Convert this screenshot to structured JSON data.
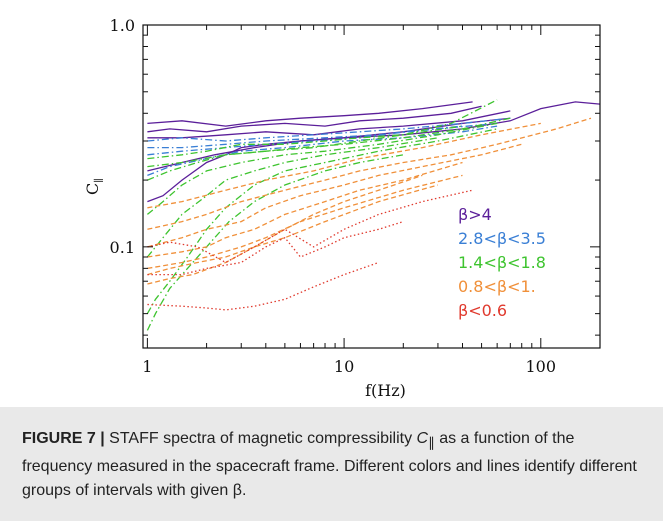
{
  "chart_data": {
    "type": "line",
    "title": "",
    "xlabel": "f(Hz)",
    "ylabel": "C",
    "ylabel_subscript": "∥",
    "xscale": "log",
    "yscale": "log",
    "xlim": [
      0.95,
      200
    ],
    "ylim": [
      0.035,
      1.0
    ],
    "xticks": [
      {
        "value": 1,
        "label": "1"
      },
      {
        "value": 10,
        "label": "10"
      },
      {
        "value": 100,
        "label": "100"
      }
    ],
    "yticks": [
      {
        "value": 0.1,
        "label": "0.1"
      },
      {
        "value": 1.0,
        "label": "1.0"
      }
    ],
    "grid": false,
    "legend_position": "right",
    "legend": [
      {
        "label": "β>4",
        "color": "#5b1f9a",
        "dash": "solid"
      },
      {
        "label": "2.8<β<3.5",
        "color": "#3a7fd5",
        "dash": "dashdot"
      },
      {
        "label": "1.4<β<1.8",
        "color": "#3ec42f",
        "dash": "dashdot"
      },
      {
        "label": "0.8<β<1.",
        "color": "#f0903a",
        "dash": "dashed"
      },
      {
        "label": "β<0.6",
        "color": "#e03a2e",
        "dash": "dotted"
      }
    ],
    "series": [
      {
        "group": 0,
        "x": [
          1,
          1.5,
          2.5,
          4,
          6,
          10,
          15,
          25,
          45
        ],
        "y": [
          0.36,
          0.37,
          0.35,
          0.37,
          0.38,
          0.39,
          0.4,
          0.42,
          0.45
        ]
      },
      {
        "group": 0,
        "x": [
          1,
          1.3,
          2,
          3,
          5,
          8,
          12,
          20,
          35,
          50
        ],
        "y": [
          0.33,
          0.34,
          0.33,
          0.35,
          0.36,
          0.35,
          0.37,
          0.38,
          0.4,
          0.43
        ]
      },
      {
        "group": 0,
        "x": [
          1,
          1.5,
          2.5,
          4,
          7,
          12,
          20,
          40,
          70
        ],
        "y": [
          0.31,
          0.31,
          0.32,
          0.33,
          0.32,
          0.34,
          0.35,
          0.37,
          0.41
        ]
      },
      {
        "group": 0,
        "x": [
          1,
          1.5,
          2.2,
          3.5,
          6,
          10,
          20,
          40,
          70,
          100,
          150,
          200
        ],
        "y": [
          0.22,
          0.24,
          0.26,
          0.28,
          0.3,
          0.31,
          0.32,
          0.34,
          0.37,
          0.42,
          0.45,
          0.44
        ]
      },
      {
        "group": 0,
        "x": [
          1,
          1.2,
          1.5,
          2,
          2.5,
          3,
          4,
          6,
          10,
          20,
          40,
          70
        ],
        "y": [
          0.16,
          0.17,
          0.2,
          0.24,
          0.26,
          0.28,
          0.29,
          0.3,
          0.31,
          0.33,
          0.36,
          0.38
        ]
      },
      {
        "group": 1,
        "x": [
          1,
          1.5,
          2.5,
          4,
          7,
          12,
          20,
          40,
          70
        ],
        "y": [
          0.3,
          0.31,
          0.3,
          0.31,
          0.32,
          0.33,
          0.34,
          0.36,
          0.38
        ]
      },
      {
        "group": 1,
        "x": [
          1,
          1.5,
          2.5,
          4,
          7,
          12,
          20,
          40
        ],
        "y": [
          0.26,
          0.27,
          0.28,
          0.29,
          0.3,
          0.31,
          0.33,
          0.35
        ]
      },
      {
        "group": 1,
        "x": [
          1,
          1.3,
          2,
          3,
          5,
          10,
          20,
          40,
          60
        ],
        "y": [
          0.21,
          0.23,
          0.25,
          0.27,
          0.28,
          0.3,
          0.31,
          0.33,
          0.35
        ]
      },
      {
        "group": 1,
        "x": [
          1,
          1.5,
          2.5,
          4,
          8,
          15,
          30,
          60
        ],
        "y": [
          0.28,
          0.28,
          0.29,
          0.3,
          0.31,
          0.32,
          0.34,
          0.36
        ]
      },
      {
        "group": 2,
        "x": [
          1,
          1.5,
          2,
          3,
          5,
          8,
          12,
          20,
          35,
          60
        ],
        "y": [
          0.25,
          0.26,
          0.27,
          0.29,
          0.29,
          0.3,
          0.31,
          0.32,
          0.36,
          0.46
        ]
      },
      {
        "group": 2,
        "x": [
          1,
          1.3,
          1.8,
          2.5,
          4,
          6,
          10,
          20,
          40,
          70
        ],
        "y": [
          0.2,
          0.22,
          0.24,
          0.26,
          0.27,
          0.28,
          0.29,
          0.31,
          0.34,
          0.38
        ]
      },
      {
        "group": 2,
        "x": [
          1,
          1.2,
          1.5,
          2,
          3,
          5,
          8,
          15,
          30,
          60
        ],
        "y": [
          0.14,
          0.16,
          0.19,
          0.22,
          0.24,
          0.26,
          0.27,
          0.29,
          0.32,
          0.36
        ]
      },
      {
        "group": 2,
        "x": [
          1,
          1.2,
          1.5,
          2,
          2.5,
          3.5,
          5,
          8,
          15,
          30
        ],
        "y": [
          0.09,
          0.11,
          0.14,
          0.17,
          0.2,
          0.22,
          0.24,
          0.26,
          0.28,
          0.31
        ]
      },
      {
        "group": 2,
        "x": [
          1,
          1.1,
          1.3,
          1.6,
          2,
          2.5,
          3.5,
          5,
          8,
          15,
          30,
          60
        ],
        "y": [
          0.05,
          0.058,
          0.07,
          0.09,
          0.12,
          0.15,
          0.19,
          0.22,
          0.24,
          0.27,
          0.3,
          0.34
        ]
      },
      {
        "group": 2,
        "x": [
          1,
          1.1,
          1.3,
          1.6,
          2,
          2.6,
          3.5,
          5,
          8,
          12,
          20
        ],
        "y": [
          0.042,
          0.05,
          0.065,
          0.08,
          0.1,
          0.13,
          0.16,
          0.19,
          0.22,
          0.24,
          0.26
        ]
      },
      {
        "group": 2,
        "x": [
          1,
          1.5,
          2.5,
          4,
          7,
          12,
          20,
          40
        ],
        "y": [
          0.23,
          0.24,
          0.26,
          0.27,
          0.28,
          0.3,
          0.32,
          0.35
        ]
      },
      {
        "group": 3,
        "x": [
          1,
          1.5,
          2,
          3,
          5,
          8,
          12,
          20,
          35,
          60,
          120,
          180
        ],
        "y": [
          0.12,
          0.13,
          0.14,
          0.16,
          0.18,
          0.2,
          0.22,
          0.24,
          0.26,
          0.29,
          0.34,
          0.38
        ]
      },
      {
        "group": 3,
        "x": [
          1,
          1.5,
          2,
          3,
          4,
          6,
          10,
          15,
          25,
          50,
          80
        ],
        "y": [
          0.1,
          0.11,
          0.12,
          0.13,
          0.15,
          0.17,
          0.19,
          0.21,
          0.23,
          0.26,
          0.29
        ]
      },
      {
        "group": 3,
        "x": [
          1,
          1.5,
          2,
          2.5,
          3.5,
          5,
          8,
          12,
          20,
          40
        ],
        "y": [
          0.09,
          0.095,
          0.1,
          0.11,
          0.12,
          0.14,
          0.16,
          0.18,
          0.2,
          0.24
        ]
      },
      {
        "group": 3,
        "x": [
          1,
          1.5,
          2,
          3,
          4,
          6,
          10,
          20,
          40
        ],
        "y": [
          0.08,
          0.085,
          0.09,
          0.1,
          0.11,
          0.13,
          0.15,
          0.18,
          0.21
        ]
      },
      {
        "group": 3,
        "x": [
          1,
          1.3,
          1.8,
          2.5,
          3.5,
          5,
          8,
          15,
          30
        ],
        "y": [
          0.075,
          0.08,
          0.085,
          0.09,
          0.1,
          0.11,
          0.13,
          0.16,
          0.19
        ]
      },
      {
        "group": 3,
        "x": [
          1,
          1.5,
          2.5,
          4,
          7,
          12,
          25,
          50,
          100
        ],
        "y": [
          0.15,
          0.16,
          0.18,
          0.2,
          0.22,
          0.25,
          0.28,
          0.32,
          0.36
        ]
      },
      {
        "group": 3,
        "x": [
          1,
          1.3,
          1.7,
          2.5,
          3.5,
          5,
          7,
          10,
          15,
          25
        ],
        "y": [
          0.068,
          0.072,
          0.075,
          0.085,
          0.1,
          0.12,
          0.14,
          0.16,
          0.18,
          0.21
        ]
      },
      {
        "group": 4,
        "x": [
          1,
          1.3,
          1.8,
          2.5,
          3.5,
          5,
          7,
          10,
          15,
          25,
          45
        ],
        "y": [
          0.1,
          0.105,
          0.1,
          0.085,
          0.1,
          0.12,
          0.1,
          0.12,
          0.14,
          0.16,
          0.18
        ]
      },
      {
        "group": 4,
        "x": [
          1,
          1.5,
          2,
          3,
          4,
          5,
          6,
          8,
          10,
          15,
          20
        ],
        "y": [
          0.075,
          0.075,
          0.08,
          0.085,
          0.1,
          0.11,
          0.09,
          0.1,
          0.11,
          0.12,
          0.13
        ]
      },
      {
        "group": 4,
        "x": [
          1,
          1.5,
          2,
          2.5,
          3.5,
          5,
          7,
          10,
          15
        ],
        "y": [
          0.055,
          0.054,
          0.053,
          0.052,
          0.054,
          0.058,
          0.066,
          0.075,
          0.085
        ]
      }
    ]
  },
  "caption": {
    "label": "FIGURE 7 |",
    "text_before": " STAFF spectra of magnetic compressibility ",
    "symbol": "C",
    "symbol_subscript": "∥",
    "text_after": " as a function of the frequency measured in the spacecraft frame. Different colors and lines identify different groups of intervals with given β."
  }
}
